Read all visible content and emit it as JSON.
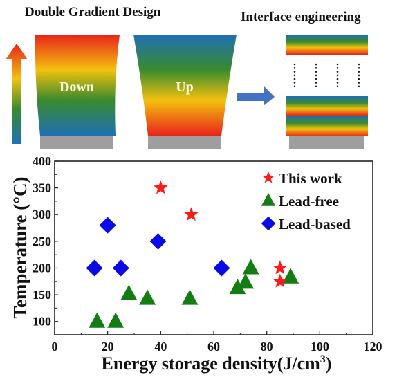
{
  "schematic": {
    "title_left": "Double Gradient Design",
    "title_right": "Interface engineering",
    "block_down_label": "Down",
    "block_up_label": "Up",
    "gradient_colors": [
      "#e8231a",
      "#f2c10f",
      "#3a8a2e",
      "#1f6fb6"
    ],
    "substrate_color": "#9e9e9e",
    "arrow_color": "#4472c4"
  },
  "chart_data": {
    "type": "scatter",
    "title": "",
    "xlabel": "Energy storage density(J/cm",
    "xlabel_sup": "3",
    "xlabel_end": ")",
    "ylabel": "Temperature (°C)",
    "xlim": [
      0,
      120
    ],
    "ylim": [
      75,
      400
    ],
    "xticks": [
      0,
      20,
      40,
      60,
      80,
      100,
      120
    ],
    "yticks": [
      100,
      150,
      200,
      250,
      300,
      350,
      400
    ],
    "grid": false,
    "legend_position": "top-right",
    "series": [
      {
        "name": "This work",
        "marker": "star",
        "color": "#ff1a1a",
        "points": [
          [
            40,
            350
          ],
          [
            51.5,
            300
          ],
          [
            85,
            200
          ],
          [
            85,
            175
          ]
        ]
      },
      {
        "name": "Lead-free",
        "marker": "triangle",
        "color": "#137d13",
        "points": [
          [
            16,
            100
          ],
          [
            23,
            100
          ],
          [
            28,
            152
          ],
          [
            35,
            143
          ],
          [
            51,
            143
          ],
          [
            69,
            163
          ],
          [
            72,
            173
          ],
          [
            74,
            200
          ],
          [
            89,
            183
          ]
        ]
      },
      {
        "name": "Lead-based",
        "marker": "diamond",
        "color": "#0a0ae6",
        "points": [
          [
            15,
            200
          ],
          [
            20,
            280
          ],
          [
            25,
            200
          ],
          [
            39,
            250
          ],
          [
            63,
            200
          ]
        ]
      }
    ]
  }
}
